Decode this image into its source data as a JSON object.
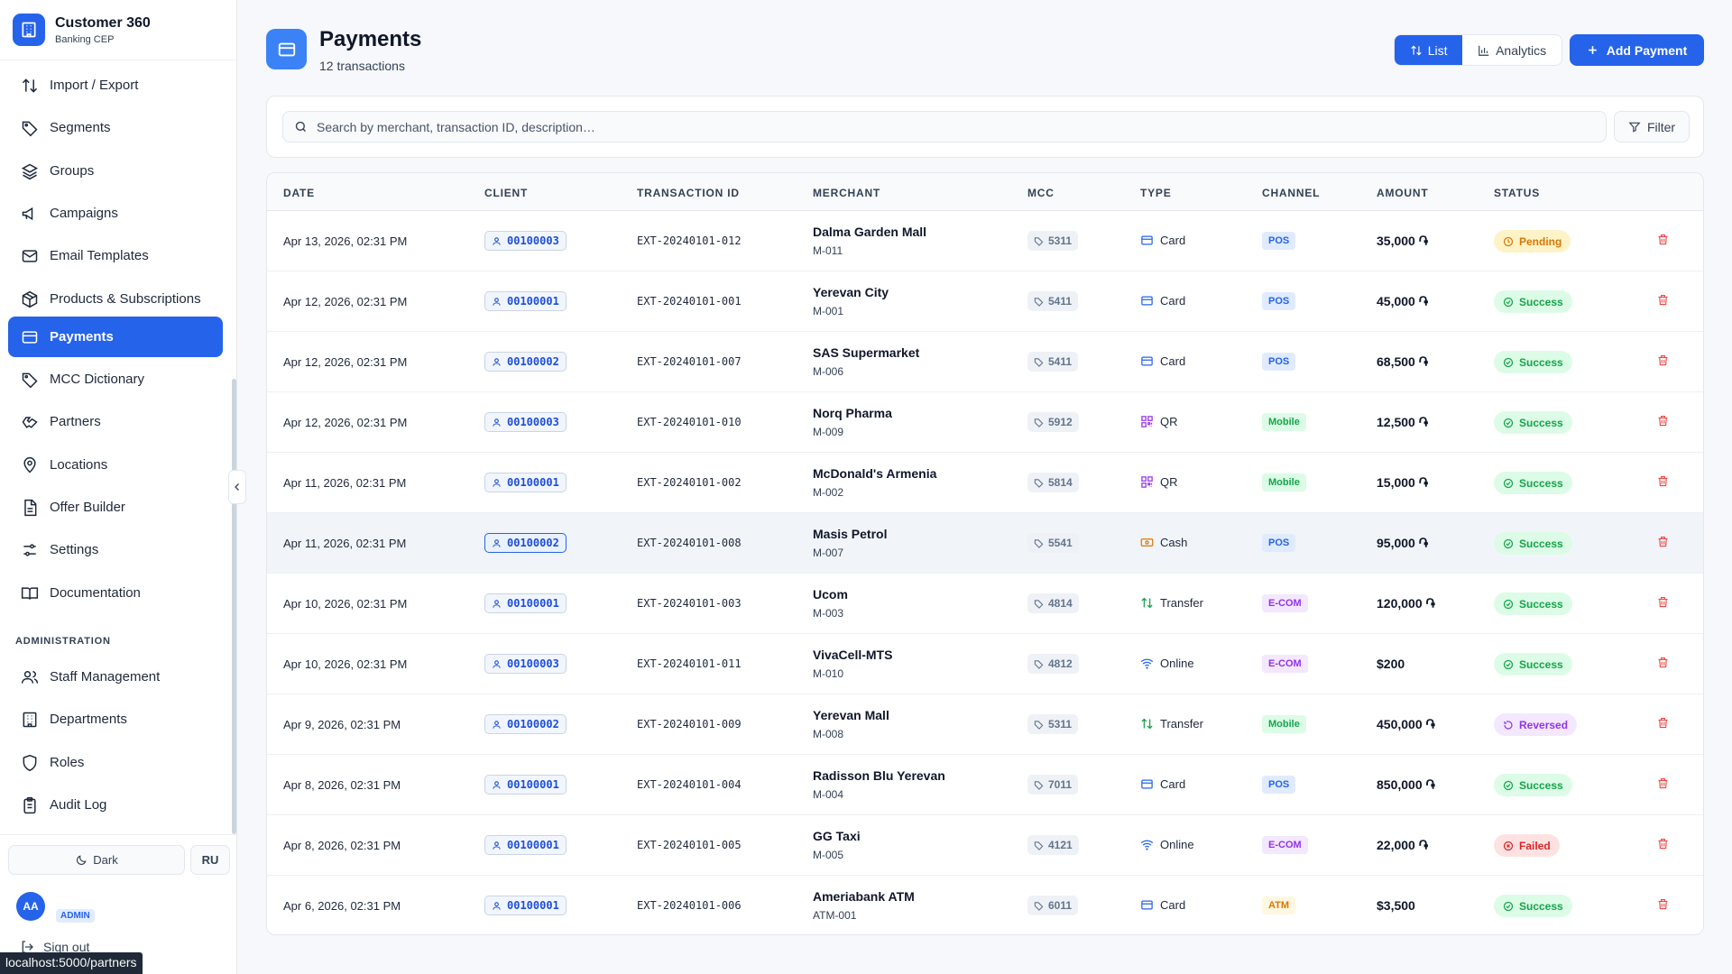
{
  "app": {
    "title": "Customer 360",
    "subtitle": "Banking CEP"
  },
  "sidebar": {
    "items": [
      {
        "label": "Import / Export",
        "icon": "import-export-icon"
      },
      {
        "label": "Segments",
        "icon": "tag-icon"
      },
      {
        "label": "Groups",
        "icon": "layers-icon"
      },
      {
        "label": "Campaigns",
        "icon": "megaphone-icon"
      },
      {
        "label": "Email Templates",
        "icon": "mail-icon"
      },
      {
        "label": "Products & Subscriptions",
        "icon": "package-icon"
      },
      {
        "label": "Payments",
        "icon": "credit-card-icon",
        "active": true
      },
      {
        "label": "MCC Dictionary",
        "icon": "tag-icon"
      },
      {
        "label": "Partners",
        "icon": "handshake-icon"
      },
      {
        "label": "Locations",
        "icon": "map-pin-icon"
      },
      {
        "label": "Offer Builder",
        "icon": "file-icon"
      },
      {
        "label": "Settings",
        "icon": "sliders-icon"
      },
      {
        "label": "Documentation",
        "icon": "book-icon"
      }
    ],
    "admin_section": "ADMINISTRATION",
    "admin_items": [
      {
        "label": "Staff Management",
        "icon": "users-icon"
      },
      {
        "label": "Departments",
        "icon": "building-icon"
      },
      {
        "label": "Roles",
        "icon": "shield-icon"
      },
      {
        "label": "Audit Log",
        "icon": "clipboard-icon"
      }
    ],
    "theme_label": "Dark",
    "lang_label": "RU",
    "avatar_initials": "AA",
    "role_badge": "ADMIN",
    "signout_label": "Sign out",
    "url_tooltip": "localhost:5000/partners"
  },
  "header": {
    "title": "Payments",
    "subtitle": "12 transactions",
    "view_list": "List",
    "view_analytics": "Analytics",
    "add_button": "Add Payment"
  },
  "search": {
    "placeholder": "Search by merchant, transaction ID, description…",
    "filter_label": "Filter"
  },
  "table": {
    "columns": [
      "DATE",
      "CLIENT",
      "TRANSACTION ID",
      "MERCHANT",
      "MCC",
      "TYPE",
      "CHANNEL",
      "AMOUNT",
      "STATUS"
    ],
    "rows": [
      {
        "date": "Apr 13, 2026, 02:31 PM",
        "client": "00100003",
        "txid": "EXT-20240101-012",
        "merchant": "Dalma Garden Mall",
        "merchant_id": "M-011",
        "mcc": "5311",
        "type": "Card",
        "channel": "POS",
        "amount": "35,000 ֏",
        "status": "Pending"
      },
      {
        "date": "Apr 12, 2026, 02:31 PM",
        "client": "00100001",
        "txid": "EXT-20240101-001",
        "merchant": "Yerevan City",
        "merchant_id": "M-001",
        "mcc": "5411",
        "type": "Card",
        "channel": "POS",
        "amount": "45,000 ֏",
        "status": "Success"
      },
      {
        "date": "Apr 12, 2026, 02:31 PM",
        "client": "00100002",
        "txid": "EXT-20240101-007",
        "merchant": "SAS Supermarket",
        "merchant_id": "M-006",
        "mcc": "5411",
        "type": "Card",
        "channel": "POS",
        "amount": "68,500 ֏",
        "status": "Success"
      },
      {
        "date": "Apr 12, 2026, 02:31 PM",
        "client": "00100003",
        "txid": "EXT-20240101-010",
        "merchant": "Norq Pharma",
        "merchant_id": "M-009",
        "mcc": "5912",
        "type": "QR",
        "channel": "Mobile",
        "amount": "12,500 ֏",
        "status": "Success"
      },
      {
        "date": "Apr 11, 2026, 02:31 PM",
        "client": "00100001",
        "txid": "EXT-20240101-002",
        "merchant": "McDonald's Armenia",
        "merchant_id": "M-002",
        "mcc": "5814",
        "type": "QR",
        "channel": "Mobile",
        "amount": "15,000 ֏",
        "status": "Success"
      },
      {
        "date": "Apr 11, 2026, 02:31 PM",
        "client": "00100002",
        "txid": "EXT-20240101-008",
        "merchant": "Masis Petrol",
        "merchant_id": "M-007",
        "mcc": "5541",
        "type": "Cash",
        "channel": "POS",
        "amount": "95,000 ֏",
        "status": "Success",
        "highlighted": true
      },
      {
        "date": "Apr 10, 2026, 02:31 PM",
        "client": "00100001",
        "txid": "EXT-20240101-003",
        "merchant": "Ucom",
        "merchant_id": "M-003",
        "mcc": "4814",
        "type": "Transfer",
        "channel": "E-COM",
        "amount": "120,000 ֏",
        "status": "Success"
      },
      {
        "date": "Apr 10, 2026, 02:31 PM",
        "client": "00100003",
        "txid": "EXT-20240101-011",
        "merchant": "VivaCell-MTS",
        "merchant_id": "M-010",
        "mcc": "4812",
        "type": "Online",
        "channel": "E-COM",
        "amount": "$200",
        "status": "Success"
      },
      {
        "date": "Apr 9, 2026, 02:31 PM",
        "client": "00100002",
        "txid": "EXT-20240101-009",
        "merchant": "Yerevan Mall",
        "merchant_id": "M-008",
        "mcc": "5311",
        "type": "Transfer",
        "channel": "Mobile",
        "amount": "450,000 ֏",
        "status": "Reversed"
      },
      {
        "date": "Apr 8, 2026, 02:31 PM",
        "client": "00100001",
        "txid": "EXT-20240101-004",
        "merchant": "Radisson Blu Yerevan",
        "merchant_id": "M-004",
        "mcc": "7011",
        "type": "Card",
        "channel": "POS",
        "amount": "850,000 ֏",
        "status": "Success"
      },
      {
        "date": "Apr 8, 2026, 02:31 PM",
        "client": "00100001",
        "txid": "EXT-20240101-005",
        "merchant": "GG Taxi",
        "merchant_id": "M-005",
        "mcc": "4121",
        "type": "Online",
        "channel": "E-COM",
        "amount": "22,000 ֏",
        "status": "Failed"
      },
      {
        "date": "Apr 6, 2026, 02:31 PM",
        "client": "00100001",
        "txid": "EXT-20240101-006",
        "merchant": "Ameriabank ATM",
        "merchant_id": "ATM-001",
        "mcc": "6011",
        "type": "Card",
        "channel": "ATM",
        "amount": "$3,500",
        "status": "Success"
      }
    ]
  },
  "colors": {
    "accent": "#2563eb",
    "success": "#16a34a",
    "pending": "#d97706",
    "reversed": "#9333ea",
    "failed": "#dc2626"
  }
}
